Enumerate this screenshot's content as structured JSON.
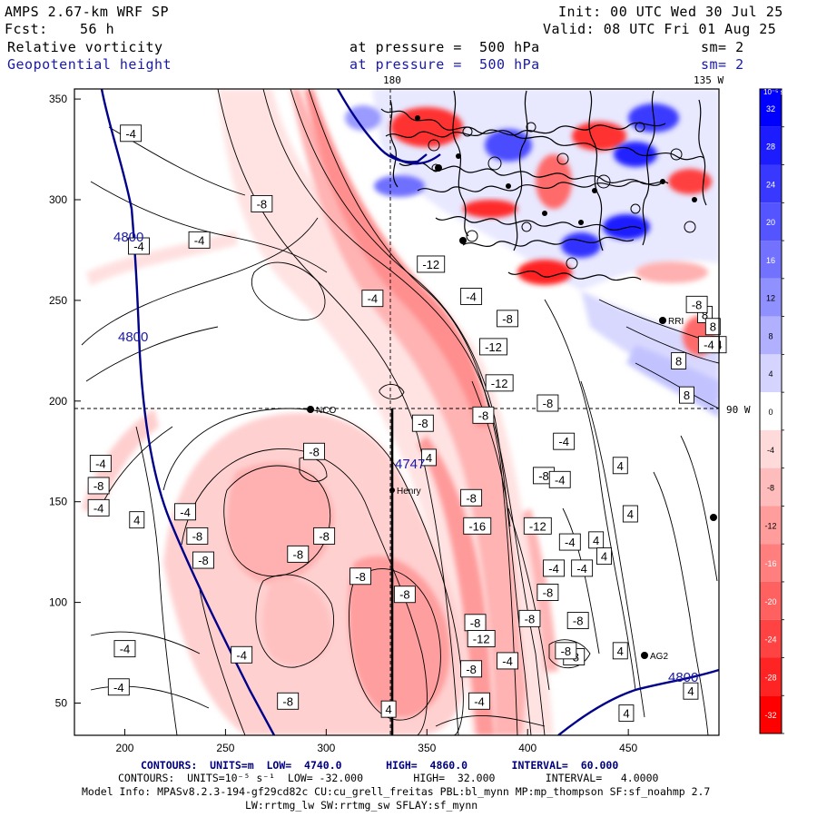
{
  "header": {
    "title": "AMPS 2.67-km WRF SP",
    "init": "Init: 00 UTC Wed 30 Jul 25",
    "fcst_label": "Fcst:",
    "fcst_value": "56 h",
    "valid": "Valid: 08 UTC Fri 01 Aug 25",
    "field1": "Relative vorticity",
    "field1_level": "at pressure =  500 hPa",
    "field1_sm": "sm= 2",
    "field2": "Geopotential height",
    "field2_level": "at pressure =  500 hPa",
    "field2_sm": "sm= 2"
  },
  "map_labels": {
    "lon_180": "180",
    "lon_135": "135 W",
    "lat_90": "90 W",
    "height_labels": [
      "4800",
      "4800",
      "4800",
      "4747"
    ],
    "stations": [
      "NCO",
      "Henry",
      "RRI",
      "AG2"
    ]
  },
  "chart_data": {
    "type": "heatmap",
    "xlim": [
      175,
      495
    ],
    "ylim": [
      34,
      355
    ],
    "x_ticks": [
      200,
      250,
      300,
      350,
      400,
      450
    ],
    "y_ticks": [
      50,
      100,
      150,
      200,
      250,
      300,
      350
    ],
    "grid_lines": {
      "x": 335,
      "y": 196
    },
    "colorbar": {
      "unit": "10⁻⁵ s⁻¹",
      "ticks": [
        32,
        28,
        24,
        20,
        16,
        12,
        8,
        4,
        0,
        -4,
        -8,
        -12,
        -16,
        -20,
        -24,
        -28,
        -32
      ],
      "colors_top_to_bottom": [
        "#0000ff",
        "#1c1cff",
        "#3838ff",
        "#5555ff",
        "#7272ff",
        "#9090ff",
        "#b0b0ff",
        "#d4d4ff",
        "#ffffff",
        "#ffdada",
        "#ffbcbc",
        "#ff9c9c",
        "#ff7e7e",
        "#ff6060",
        "#ff4242",
        "#ff2424",
        "#ff0000"
      ]
    },
    "vorticity_contour_labels": [
      {
        "x": 203,
        "y": 333,
        "v": "-4"
      },
      {
        "x": 268,
        "y": 298,
        "v": "-8"
      },
      {
        "x": 207,
        "y": 277,
        "v": "-4"
      },
      {
        "x": 237,
        "y": 280,
        "v": "-4"
      },
      {
        "x": 323,
        "y": 251,
        "v": "-4"
      },
      {
        "x": 352,
        "y": 268,
        "v": "-12"
      },
      {
        "x": 372,
        "y": 252,
        "v": "-4"
      },
      {
        "x": 390,
        "y": 241,
        "v": "-8"
      },
      {
        "x": 383,
        "y": 227,
        "v": "-12"
      },
      {
        "x": 386,
        "y": 209,
        "v": "-12"
      },
      {
        "x": 410,
        "y": 199,
        "v": "-8"
      },
      {
        "x": 378,
        "y": 193,
        "v": "-8"
      },
      {
        "x": 348,
        "y": 189,
        "v": "-8"
      },
      {
        "x": 418,
        "y": 180,
        "v": "-4"
      },
      {
        "x": 408,
        "y": 163,
        "v": "-8"
      },
      {
        "x": 416,
        "y": 161,
        "v": "-4"
      },
      {
        "x": 372,
        "y": 152,
        "v": "-8"
      },
      {
        "x": 351,
        "y": 172,
        "v": "4"
      },
      {
        "x": 375,
        "y": 138,
        "v": "-16"
      },
      {
        "x": 405,
        "y": 138,
        "v": "-12"
      },
      {
        "x": 488,
        "y": 243,
        "v": "8"
      },
      {
        "x": 492,
        "y": 237,
        "v": "8"
      },
      {
        "x": 495,
        "y": 228,
        "v": "4"
      },
      {
        "x": 475,
        "y": 220,
        "v": "8"
      },
      {
        "x": 479,
        "y": 203,
        "v": "8"
      },
      {
        "x": 484,
        "y": 248,
        "v": "-8"
      },
      {
        "x": 490,
        "y": 228,
        "v": "-4"
      },
      {
        "x": 294,
        "y": 175,
        "v": "-8"
      },
      {
        "x": 188,
        "y": 169,
        "v": "-4"
      },
      {
        "x": 187,
        "y": 158,
        "v": "-8"
      },
      {
        "x": 187,
        "y": 147,
        "v": "-4"
      },
      {
        "x": 206,
        "y": 141,
        "v": "4"
      },
      {
        "x": 230,
        "y": 145,
        "v": "-4"
      },
      {
        "x": 236,
        "y": 133,
        "v": "-8"
      },
      {
        "x": 239,
        "y": 121,
        "v": "-8"
      },
      {
        "x": 299,
        "y": 133,
        "v": "-8"
      },
      {
        "x": 286,
        "y": 124,
        "v": "-8"
      },
      {
        "x": 317,
        "y": 113,
        "v": "-8"
      },
      {
        "x": 339,
        "y": 104,
        "v": "-8"
      },
      {
        "x": 421,
        "y": 130,
        "v": "-4"
      },
      {
        "x": 434,
        "y": 131,
        "v": "4"
      },
      {
        "x": 413,
        "y": 117,
        "v": "-4"
      },
      {
        "x": 438,
        "y": 123,
        "v": "4"
      },
      {
        "x": 427,
        "y": 117,
        "v": "-4"
      },
      {
        "x": 451,
        "y": 144,
        "v": "4"
      },
      {
        "x": 410,
        "y": 105,
        "v": "-8"
      },
      {
        "x": 374,
        "y": 90,
        "v": "-8"
      },
      {
        "x": 377,
        "y": 82,
        "v": "-12"
      },
      {
        "x": 401,
        "y": 92,
        "v": "-8"
      },
      {
        "x": 425,
        "y": 91,
        "v": "-8"
      },
      {
        "x": 390,
        "y": 71,
        "v": "-4"
      },
      {
        "x": 423,
        "y": 73,
        "v": "-8"
      },
      {
        "x": 419,
        "y": 76,
        "v": "-8"
      },
      {
        "x": 446,
        "y": 76,
        "v": "4"
      },
      {
        "x": 372,
        "y": 67,
        "v": "-8"
      },
      {
        "x": 200,
        "y": 77,
        "v": "-4"
      },
      {
        "x": 197,
        "y": 58,
        "v": "-4"
      },
      {
        "x": 258,
        "y": 74,
        "v": "-4"
      },
      {
        "x": 281,
        "y": 51,
        "v": "-8"
      },
      {
        "x": 331,
        "y": 47,
        "v": "4"
      },
      {
        "x": 376,
        "y": 51,
        "v": "-4"
      },
      {
        "x": 449,
        "y": 45,
        "v": "4"
      },
      {
        "x": 481,
        "y": 56,
        "v": "4"
      },
      {
        "x": 446,
        "y": 168,
        "v": "4"
      }
    ]
  },
  "footer": {
    "line1_contours": "CONTOURS:",
    "line1_units": "UNITS=m",
    "line1_low": "LOW=  4740.0",
    "line1_high": "HIGH=  4860.0",
    "line1_interval": "INTERVAL=  60.000",
    "line2": "CONTOURS:  UNITS=10⁻⁵ s⁻¹  LOW= -32.000        HIGH=  32.000        INTERVAL=   4.0000",
    "line3": "Model Info: MPASv8.2.3-194-gf29cd82c CU:cu_grell_freitas PBL:bl_mynn MP:mp_thompson SF:sf_noahmp 2.7",
    "line4": "LW:rrtmg_lw SW:rrtmg_sw SFLAY:sf_mynn"
  }
}
